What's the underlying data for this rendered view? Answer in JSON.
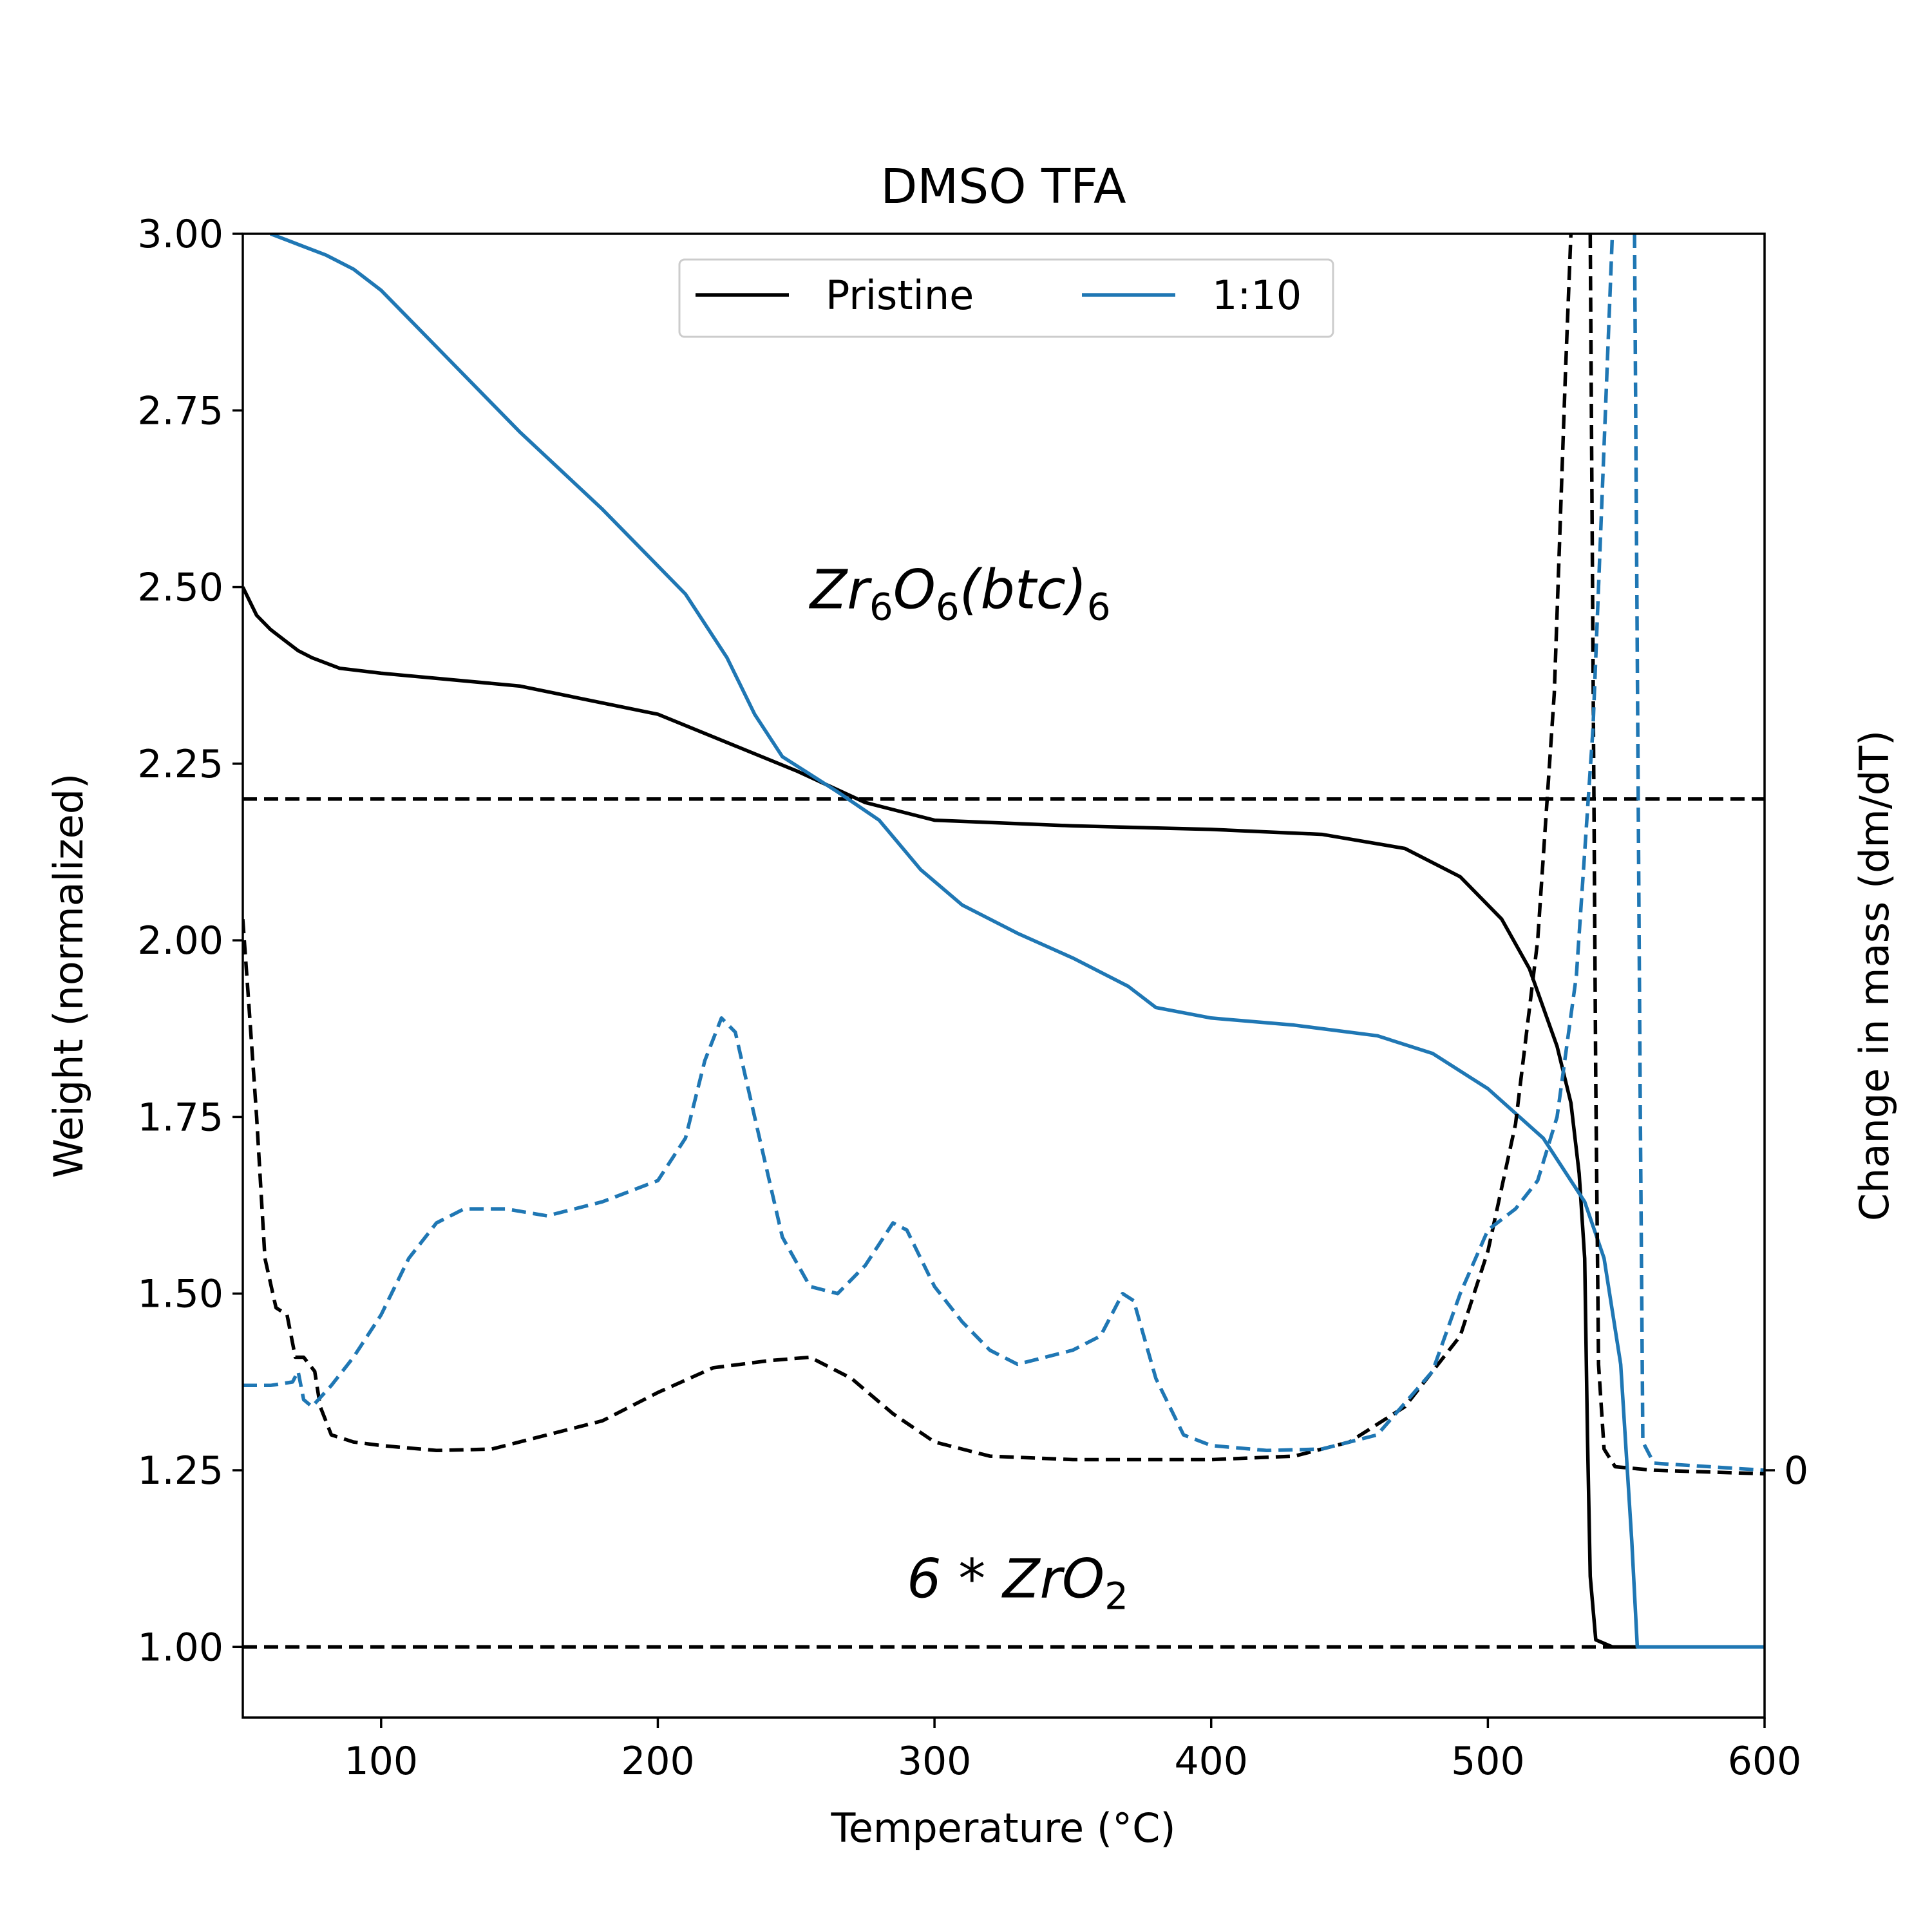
{
  "chart_data": {
    "type": "line",
    "title": "DMSO TFA",
    "xlabel": "Temperature (°C)",
    "ylabel": "Weight (normalized)",
    "y2label": "Change in mass (dm/dT)",
    "xlim": [
      50,
      600
    ],
    "ylim": [
      0.9,
      3.0
    ],
    "xticks": [
      "100",
      "200",
      "300",
      "400",
      "500",
      "600"
    ],
    "yticks": [
      "1.00",
      "1.25",
      "1.50",
      "1.75",
      "2.00",
      "2.25",
      "2.50",
      "2.75",
      "3.00"
    ],
    "y2ticks": [
      "0"
    ],
    "y2_zero_at": 1.25,
    "colors": {
      "Pristine": "#000000",
      "1:10": "#1f77b4"
    },
    "legend": {
      "position": "top-center",
      "entries": [
        "Pristine",
        "1:10"
      ]
    },
    "grid": false,
    "annotations": [
      {
        "text_main": "Zr",
        "sub1": "6",
        "text2": "O",
        "sub2": "6",
        "text3": "(btc)",
        "sub3": "6",
        "x": 255,
        "y": 2.47
      },
      {
        "text_main": "6 * ZrO",
        "sub1": "2",
        "x": 290,
        "y": 1.07
      }
    ],
    "reference_lines": [
      {
        "name": "Zr6O6(btc)6 level",
        "y": 2.2,
        "style": "dashed"
      },
      {
        "name": "6*ZrO2 level",
        "y": 1.0,
        "style": "dashed"
      }
    ],
    "series": [
      {
        "name": "Pristine",
        "kind": "weight",
        "color": "#000000",
        "style": "solid",
        "points": [
          [
            50,
            2.5
          ],
          [
            55,
            2.46
          ],
          [
            60,
            2.44
          ],
          [
            65,
            2.425
          ],
          [
            70,
            2.41
          ],
          [
            75,
            2.4
          ],
          [
            85,
            2.385
          ],
          [
            100,
            2.378
          ],
          [
            150,
            2.36
          ],
          [
            200,
            2.32
          ],
          [
            250,
            2.24
          ],
          [
            275,
            2.195
          ],
          [
            300,
            2.17
          ],
          [
            350,
            2.162
          ],
          [
            400,
            2.157
          ],
          [
            440,
            2.15
          ],
          [
            470,
            2.13
          ],
          [
            490,
            2.09
          ],
          [
            505,
            2.03
          ],
          [
            515,
            1.96
          ],
          [
            525,
            1.85
          ],
          [
            530,
            1.77
          ],
          [
            533,
            1.67
          ],
          [
            535,
            1.55
          ],
          [
            536,
            1.3
          ],
          [
            537,
            1.1
          ],
          [
            539,
            1.01
          ],
          [
            545,
            1.0
          ],
          [
            600,
            1.0
          ]
        ]
      },
      {
        "name": "1:10",
        "kind": "weight",
        "color": "#1f77b4",
        "style": "solid",
        "points": [
          [
            60,
            3.0
          ],
          [
            70,
            2.985
          ],
          [
            80,
            2.97
          ],
          [
            90,
            2.95
          ],
          [
            100,
            2.92
          ],
          [
            120,
            2.84
          ],
          [
            150,
            2.72
          ],
          [
            180,
            2.61
          ],
          [
            210,
            2.49
          ],
          [
            225,
            2.4
          ],
          [
            235,
            2.32
          ],
          [
            245,
            2.26
          ],
          [
            255,
            2.235
          ],
          [
            265,
            2.21
          ],
          [
            280,
            2.17
          ],
          [
            295,
            2.1
          ],
          [
            310,
            2.05
          ],
          [
            330,
            2.01
          ],
          [
            350,
            1.975
          ],
          [
            370,
            1.935
          ],
          [
            380,
            1.905
          ],
          [
            400,
            1.89
          ],
          [
            430,
            1.88
          ],
          [
            460,
            1.865
          ],
          [
            480,
            1.84
          ],
          [
            500,
            1.79
          ],
          [
            520,
            1.72
          ],
          [
            535,
            1.63
          ],
          [
            542,
            1.55
          ],
          [
            548,
            1.4
          ],
          [
            552,
            1.15
          ],
          [
            554,
            1.0
          ],
          [
            600,
            1.0
          ]
        ]
      },
      {
        "name": "Pristine dm/dT",
        "kind": "derivative",
        "color": "#000000",
        "style": "dashed",
        "points": [
          [
            50,
            2.03
          ],
          [
            52,
            1.92
          ],
          [
            55,
            1.75
          ],
          [
            58,
            1.55
          ],
          [
            62,
            1.48
          ],
          [
            66,
            1.47
          ],
          [
            69,
            1.41
          ],
          [
            72,
            1.41
          ],
          [
            76,
            1.39
          ],
          [
            78,
            1.34
          ],
          [
            82,
            1.3
          ],
          [
            90,
            1.29
          ],
          [
            100,
            1.285
          ],
          [
            120,
            1.278
          ],
          [
            140,
            1.28
          ],
          [
            160,
            1.3
          ],
          [
            180,
            1.32
          ],
          [
            200,
            1.36
          ],
          [
            220,
            1.395
          ],
          [
            240,
            1.405
          ],
          [
            255,
            1.41
          ],
          [
            270,
            1.38
          ],
          [
            285,
            1.33
          ],
          [
            300,
            1.29
          ],
          [
            320,
            1.27
          ],
          [
            350,
            1.265
          ],
          [
            400,
            1.265
          ],
          [
            430,
            1.27
          ],
          [
            450,
            1.29
          ],
          [
            470,
            1.34
          ],
          [
            490,
            1.44
          ],
          [
            500,
            1.56
          ],
          [
            510,
            1.74
          ],
          [
            518,
            2.0
          ],
          [
            524,
            2.35
          ],
          [
            528,
            2.8
          ],
          [
            530,
            3.0
          ]
        ]
      },
      {
        "name": "Pristine dm/dT (high-T)",
        "kind": "derivative",
        "color": "#000000",
        "style": "dashed",
        "points": [
          [
            537,
            3.0
          ],
          [
            538,
            2.4
          ],
          [
            539,
            1.8
          ],
          [
            540,
            1.4
          ],
          [
            542,
            1.28
          ],
          [
            546,
            1.255
          ],
          [
            560,
            1.25
          ],
          [
            600,
            1.245
          ]
        ]
      },
      {
        "name": "1:10 dm/dT",
        "kind": "derivative",
        "color": "#1f77b4",
        "style": "dashed",
        "points": [
          [
            50,
            1.37
          ],
          [
            60,
            1.37
          ],
          [
            68,
            1.375
          ],
          [
            70,
            1.39
          ],
          [
            72,
            1.35
          ],
          [
            75,
            1.34
          ],
          [
            82,
            1.37
          ],
          [
            90,
            1.41
          ],
          [
            100,
            1.47
          ],
          [
            110,
            1.55
          ],
          [
            120,
            1.6
          ],
          [
            130,
            1.62
          ],
          [
            145,
            1.62
          ],
          [
            160,
            1.61
          ],
          [
            180,
            1.63
          ],
          [
            200,
            1.66
          ],
          [
            210,
            1.72
          ],
          [
            217,
            1.83
          ],
          [
            223,
            1.89
          ],
          [
            228,
            1.87
          ],
          [
            235,
            1.75
          ],
          [
            245,
            1.58
          ],
          [
            255,
            1.51
          ],
          [
            265,
            1.5
          ],
          [
            275,
            1.54
          ],
          [
            285,
            1.6
          ],
          [
            290,
            1.59
          ],
          [
            300,
            1.51
          ],
          [
            310,
            1.46
          ],
          [
            320,
            1.42
          ],
          [
            330,
            1.4
          ],
          [
            340,
            1.41
          ],
          [
            350,
            1.42
          ],
          [
            360,
            1.44
          ],
          [
            368,
            1.5
          ],
          [
            372,
            1.49
          ],
          [
            380,
            1.38
          ],
          [
            390,
            1.3
          ],
          [
            400,
            1.285
          ],
          [
            420,
            1.278
          ],
          [
            440,
            1.28
          ],
          [
            460,
            1.3
          ],
          [
            480,
            1.39
          ],
          [
            490,
            1.5
          ],
          [
            500,
            1.59
          ],
          [
            510,
            1.62
          ],
          [
            518,
            1.66
          ],
          [
            525,
            1.75
          ],
          [
            532,
            1.95
          ],
          [
            538,
            2.3
          ],
          [
            543,
            2.8
          ],
          [
            545,
            3.0
          ]
        ]
      },
      {
        "name": "1:10 dm/dT (high-T)",
        "kind": "derivative",
        "color": "#1f77b4",
        "style": "dashed",
        "points": [
          [
            553,
            3.0
          ],
          [
            554,
            2.4
          ],
          [
            555,
            1.8
          ],
          [
            556,
            1.29
          ],
          [
            560,
            1.26
          ],
          [
            600,
            1.25
          ]
        ]
      }
    ]
  }
}
